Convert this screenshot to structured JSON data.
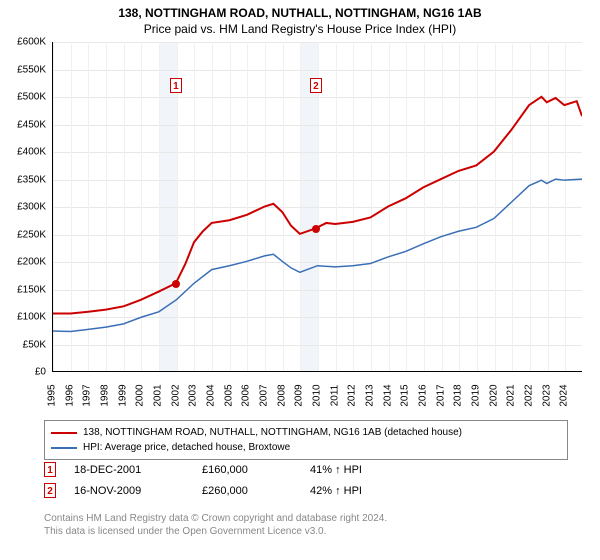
{
  "title": {
    "line1": "138, NOTTINGHAM ROAD, NUTHALL, NOTTINGHAM, NG16 1AB",
    "line2": "Price paid vs. HM Land Registry's House Price Index (HPI)"
  },
  "chart": {
    "type": "line",
    "background_color": "#ffffff",
    "grid_color": "#e8e8e8",
    "shade_color": "#e8eef5",
    "x_min": 1995,
    "x_max": 2025,
    "x_ticks": [
      1995,
      1996,
      1997,
      1998,
      1999,
      2000,
      2001,
      2002,
      2003,
      2004,
      2005,
      2006,
      2007,
      2008,
      2009,
      2010,
      2011,
      2012,
      2013,
      2014,
      2015,
      2016,
      2017,
      2018,
      2019,
      2020,
      2021,
      2022,
      2023,
      2024
    ],
    "y_min": 0,
    "y_max": 600,
    "y_unit_prefix": "£",
    "y_unit_suffix": "K",
    "y_ticks": [
      0,
      50,
      100,
      150,
      200,
      250,
      300,
      350,
      400,
      450,
      500,
      550,
      600
    ],
    "shaded_spans": [
      [
        2001,
        2002
      ],
      [
        2009,
        2010
      ]
    ],
    "markers": [
      {
        "num": "1",
        "x": 2001.96,
        "y_label": 520,
        "dot_y": 160,
        "dot_color": "#cc0000"
      },
      {
        "num": "2",
        "x": 2009.88,
        "y_label": 520,
        "dot_y": 260,
        "dot_color": "#cc0000"
      }
    ],
    "series": [
      {
        "id": "property",
        "color": "#cc0000",
        "line_width": 2,
        "label": "138, NOTTINGHAM ROAD, NUTHALL, NOTTINGHAM, NG16 1AB (detached house)",
        "points": [
          [
            1995,
            105
          ],
          [
            1996,
            105
          ],
          [
            1997,
            108
          ],
          [
            1998,
            112
          ],
          [
            1999,
            118
          ],
          [
            2000,
            130
          ],
          [
            2001,
            145
          ],
          [
            2001.96,
            160
          ],
          [
            2002.5,
            195
          ],
          [
            2003,
            235
          ],
          [
            2003.5,
            255
          ],
          [
            2004,
            270
          ],
          [
            2005,
            275
          ],
          [
            2006,
            285
          ],
          [
            2007,
            300
          ],
          [
            2007.5,
            305
          ],
          [
            2008,
            290
          ],
          [
            2008.5,
            265
          ],
          [
            2009,
            250
          ],
          [
            2009.88,
            260
          ],
          [
            2010.5,
            270
          ],
          [
            2011,
            268
          ],
          [
            2012,
            272
          ],
          [
            2013,
            280
          ],
          [
            2014,
            300
          ],
          [
            2015,
            315
          ],
          [
            2016,
            335
          ],
          [
            2017,
            350
          ],
          [
            2018,
            365
          ],
          [
            2019,
            375
          ],
          [
            2020,
            400
          ],
          [
            2021,
            440
          ],
          [
            2022,
            485
          ],
          [
            2022.7,
            500
          ],
          [
            2023,
            490
          ],
          [
            2023.5,
            498
          ],
          [
            2024,
            485
          ],
          [
            2024.7,
            492
          ],
          [
            2025,
            465
          ]
        ]
      },
      {
        "id": "hpi",
        "color": "#3a6fb7",
        "line_width": 1.5,
        "label": "HPI: Average price, detached house, Broxtowe",
        "points": [
          [
            1995,
            73
          ],
          [
            1996,
            72
          ],
          [
            1997,
            76
          ],
          [
            1998,
            80
          ],
          [
            1999,
            86
          ],
          [
            2000,
            98
          ],
          [
            2001,
            108
          ],
          [
            2002,
            130
          ],
          [
            2003,
            160
          ],
          [
            2004,
            185
          ],
          [
            2005,
            192
          ],
          [
            2006,
            200
          ],
          [
            2007,
            210
          ],
          [
            2007.5,
            213
          ],
          [
            2008,
            200
          ],
          [
            2008.5,
            188
          ],
          [
            2009,
            180
          ],
          [
            2010,
            192
          ],
          [
            2011,
            190
          ],
          [
            2012,
            192
          ],
          [
            2013,
            196
          ],
          [
            2014,
            208
          ],
          [
            2015,
            218
          ],
          [
            2016,
            232
          ],
          [
            2017,
            245
          ],
          [
            2018,
            255
          ],
          [
            2019,
            262
          ],
          [
            2020,
            278
          ],
          [
            2021,
            308
          ],
          [
            2022,
            338
          ],
          [
            2022.7,
            348
          ],
          [
            2023,
            342
          ],
          [
            2023.5,
            350
          ],
          [
            2024,
            348
          ],
          [
            2025,
            350
          ]
        ]
      }
    ]
  },
  "legend": {
    "rows": [
      {
        "color": "#cc0000",
        "text": "138, NOTTINGHAM ROAD, NUTHALL, NOTTINGHAM, NG16 1AB (detached house)"
      },
      {
        "color": "#3a6fb7",
        "text": "HPI: Average price, detached house, Broxtowe"
      }
    ]
  },
  "events": [
    {
      "num": "1",
      "date": "18-DEC-2001",
      "price": "£160,000",
      "pct": "41% ↑ HPI"
    },
    {
      "num": "2",
      "date": "16-NOV-2009",
      "price": "£260,000",
      "pct": "42% ↑ HPI"
    }
  ],
  "footer": {
    "line1": "Contains HM Land Registry data © Crown copyright and database right 2024.",
    "line2": "This data is licensed under the Open Government Licence v3.0."
  }
}
